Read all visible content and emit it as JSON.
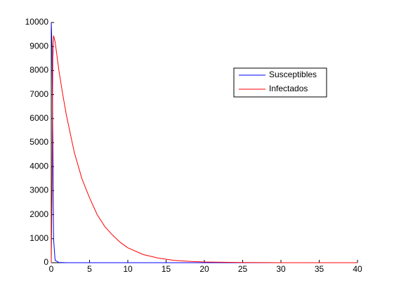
{
  "chart_data": {
    "type": "line",
    "xlim": [
      0,
      40
    ],
    "xticks": [
      0,
      5,
      10,
      15,
      20,
      25,
      30,
      35,
      40
    ],
    "ylim": [
      0,
      10000
    ],
    "yticks": [
      0,
      1000,
      2000,
      3000,
      4000,
      5000,
      6000,
      7000,
      8000,
      9000,
      10000
    ],
    "legend": "upper-right",
    "series": [
      {
        "name": "Susceptibles",
        "color": "#0000ff",
        "x": [
          0,
          0.1,
          0.2,
          0.3,
          0.5,
          1,
          2,
          40
        ],
        "values": [
          9999,
          9000,
          5000,
          1000,
          100,
          10,
          0,
          0
        ]
      },
      {
        "name": "Infectados",
        "color": "#ff0000",
        "x": [
          0,
          0.1,
          0.2,
          0.3,
          0.5,
          1,
          1.5,
          2,
          3,
          4,
          5,
          6,
          7,
          8,
          9,
          10,
          12,
          14,
          16,
          18,
          20,
          25,
          30,
          35,
          40
        ],
        "values": [
          1,
          3000,
          8500,
          9450,
          9200,
          8000,
          7000,
          6100,
          4600,
          3500,
          2700,
          2000,
          1500,
          1150,
          850,
          620,
          340,
          190,
          100,
          55,
          30,
          6,
          1,
          0,
          0
        ]
      }
    ]
  }
}
